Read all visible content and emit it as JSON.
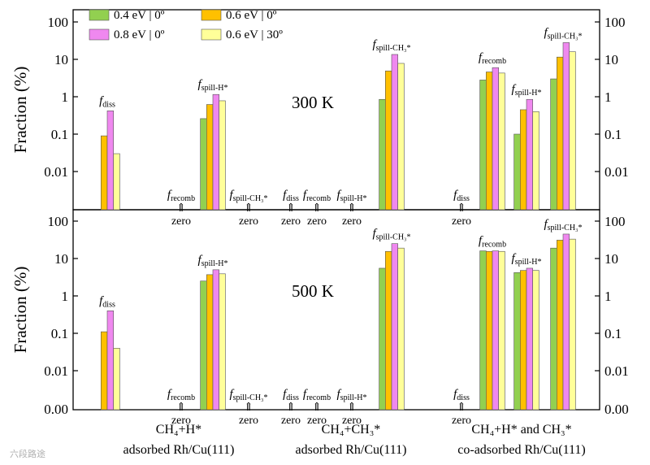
{
  "chart_data": {
    "type": "bar",
    "scale": "log",
    "ylabel": "Fraction (%)",
    "y_ticks": [
      "100",
      "10",
      "1",
      "0.1",
      "0.01",
      "0.00"
    ],
    "zero_label": "zero",
    "up_arrow": "⇑",
    "series": [
      {
        "name": "0.4 eV | 0º",
        "color": "#92d050"
      },
      {
        "name": "0.6 eV | 0º",
        "color": "#ffc000"
      },
      {
        "name": "0.8 eV | 0º",
        "color": "#ef88ef"
      },
      {
        "name": "0.6 eV | 30º",
        "color": "#ffff99"
      }
    ],
    "annotation_labels": {
      "diss": {
        "main": "f",
        "sub": "diss"
      },
      "recomb": {
        "main": "f",
        "sub": "recomb"
      },
      "spillH": {
        "main": "f",
        "sub": "spill-H*"
      },
      "spillCH3": {
        "main": "f",
        "sub": "spill-CH₃*"
      }
    },
    "groups": [
      {
        "line1": "CH₄+H*",
        "line2": "adsorbed Rh/Cu(111)"
      },
      {
        "line1": "CH₄+CH₃*",
        "line2": "adsorbed Rh/Cu(111)"
      },
      {
        "line1": "CH₄+H* and CH₃*",
        "line2": "co-adsorbed Rh/Cu(111)"
      }
    ],
    "panels": [
      {
        "temperature": "300 K",
        "quantities": [
          {
            "group": 0,
            "label": "diss",
            "values": [
              0,
              0.09,
              0.42,
              0.03
            ]
          },
          {
            "group": 0,
            "label": "recomb",
            "values": [
              0,
              0,
              0,
              0
            ]
          },
          {
            "group": 0,
            "label": "spillH",
            "values": [
              0.26,
              0.62,
              1.15,
              0.78
            ]
          },
          {
            "group": 0,
            "label": "spillCH3",
            "values": [
              0,
              0,
              0,
              0
            ]
          },
          {
            "group": 1,
            "label": "diss",
            "values": [
              0,
              0,
              0,
              0
            ]
          },
          {
            "group": 1,
            "label": "recomb",
            "values": [
              0,
              0,
              0,
              0
            ]
          },
          {
            "group": 1,
            "label": "spillH",
            "values": [
              0,
              0,
              0,
              0
            ]
          },
          {
            "group": 1,
            "label": "spillCH3",
            "values": [
              0.85,
              4.9,
              13.5,
              7.8
            ]
          },
          {
            "group": 2,
            "label": "diss",
            "values": [
              0,
              0,
              0,
              0
            ]
          },
          {
            "group": 2,
            "label": "recomb",
            "values": [
              2.8,
              4.6,
              6.0,
              4.3
            ]
          },
          {
            "group": 2,
            "label": "spillH",
            "values": [
              0.1,
              0.45,
              0.85,
              0.4
            ]
          },
          {
            "group": 2,
            "label": "spillCH3",
            "values": [
              3.0,
              11.5,
              28,
              16
            ]
          }
        ]
      },
      {
        "temperature": "500 K",
        "quantities": [
          {
            "group": 0,
            "label": "diss",
            "values": [
              0,
              0.11,
              0.4,
              0.04
            ]
          },
          {
            "group": 0,
            "label": "recomb",
            "values": [
              0,
              0,
              0,
              0
            ]
          },
          {
            "group": 0,
            "label": "spillH",
            "values": [
              2.5,
              3.7,
              5.0,
              3.9
            ]
          },
          {
            "group": 0,
            "label": "spillCH3",
            "values": [
              0,
              0,
              0,
              0
            ]
          },
          {
            "group": 1,
            "label": "diss",
            "values": [
              0,
              0,
              0,
              0
            ]
          },
          {
            "group": 1,
            "label": "recomb",
            "values": [
              0,
              0,
              0,
              0
            ]
          },
          {
            "group": 1,
            "label": "spillH",
            "values": [
              0,
              0,
              0,
              0
            ]
          },
          {
            "group": 1,
            "label": "spillCH3",
            "values": [
              5.5,
              15.5,
              25,
              19
            ]
          },
          {
            "group": 2,
            "label": "diss",
            "values": [
              0,
              0,
              0,
              0
            ]
          },
          {
            "group": 2,
            "label": "recomb",
            "values": [
              16,
              15.5,
              16,
              15.5
            ]
          },
          {
            "group": 2,
            "label": "spillH",
            "values": [
              4.2,
              4.8,
              5.5,
              4.8
            ]
          },
          {
            "group": 2,
            "label": "spillCH3",
            "values": [
              19,
              31,
              45,
              33
            ]
          }
        ]
      }
    ]
  },
  "watermark": "六段路途"
}
